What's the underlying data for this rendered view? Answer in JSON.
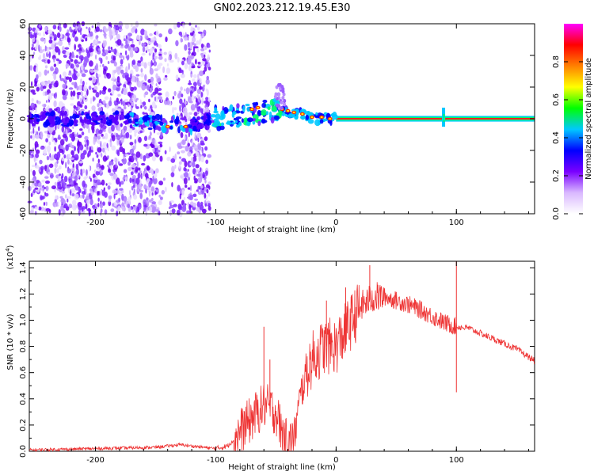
{
  "title": "GN02.2023.212.19.45.E30",
  "chart_data": [
    {
      "type": "heatmap",
      "xlabel": "Height of straight line (km)",
      "ylabel": "Frequency (Hz)",
      "xlim": [
        -255,
        165
      ],
      "ylim": [
        -60,
        60
      ],
      "x_ticks": [
        -200,
        -100,
        0,
        100
      ],
      "y_ticks": [
        -60,
        -40,
        -20,
        0,
        20,
        40,
        60
      ],
      "colorbar": {
        "label": "Normalized spectral amplitude",
        "range": [
          0,
          1
        ],
        "ticks": [
          "0.0",
          "0.2",
          "0.4",
          "0.6",
          "0.8"
        ],
        "colors": [
          "#ffffff",
          "#d9b8ff",
          "#7a00ff",
          "#0000ff",
          "#00c8ff",
          "#00ff00",
          "#ffff00",
          "#ff8000",
          "#ff0000",
          "#ff00ff"
        ]
      },
      "ridge": {
        "x": [
          -255,
          -200,
          -180,
          -160,
          -145,
          -130,
          -120,
          -110,
          -100,
          -90,
          -80,
          -70,
          -60,
          -50,
          -45,
          -40,
          -30,
          -20,
          -10,
          0,
          20,
          50,
          80,
          90,
          100,
          130,
          165
        ],
        "y": [
          0,
          0,
          0,
          -2,
          -3,
          -3,
          -5,
          -2,
          1,
          0,
          2,
          3,
          4,
          6,
          6,
          4,
          3,
          1,
          0,
          0,
          0,
          0,
          0,
          1,
          0,
          0,
          0
        ]
      }
    },
    {
      "type": "line",
      "xlabel": "Height of straight line (km)",
      "ylabel": "SNR (10 * v/v)",
      "y_multiplier": "(x10",
      "y_multiplier_exp": "4",
      "y_multiplier_close": ")",
      "xlim": [
        -255,
        165
      ],
      "ylim": [
        0,
        1.45
      ],
      "x_ticks": [
        -200,
        -100,
        0,
        100
      ],
      "y_ticks": [
        "0.0",
        "0.2",
        "0.4",
        "0.6",
        "0.8",
        "1.0",
        "1.2",
        "1.4"
      ],
      "color": "#ee3333",
      "envelope": {
        "x": [
          -255,
          -200,
          -150,
          -130,
          -100,
          -90,
          -80,
          -70,
          -60,
          -50,
          -45,
          -40,
          -35,
          -30,
          -25,
          -20,
          -15,
          -10,
          -5,
          0,
          10,
          20,
          30,
          40,
          50,
          60,
          70,
          80,
          90,
          100,
          110,
          130,
          150,
          165
        ],
        "y": [
          0.01,
          0.02,
          0.03,
          0.05,
          0.02,
          0.04,
          0.15,
          0.25,
          0.35,
          0.3,
          0.15,
          0.05,
          0.1,
          0.4,
          0.6,
          0.7,
          0.75,
          0.8,
          0.8,
          0.8,
          0.95,
          1.1,
          1.17,
          1.18,
          1.15,
          1.12,
          1.08,
          1.03,
          0.98,
          0.95,
          0.94,
          0.86,
          0.78,
          0.69
        ]
      },
      "spikes": [
        {
          "x": -60,
          "y": 0.95
        },
        {
          "x": -55,
          "y": 0.7
        },
        {
          "x": -8,
          "y": 1.15
        },
        {
          "x": 8,
          "y": 1.25
        },
        {
          "x": 28,
          "y": 1.42
        },
        {
          "x": 100,
          "y": 1.45
        },
        {
          "x": 100,
          "y": 0.45
        }
      ]
    }
  ]
}
